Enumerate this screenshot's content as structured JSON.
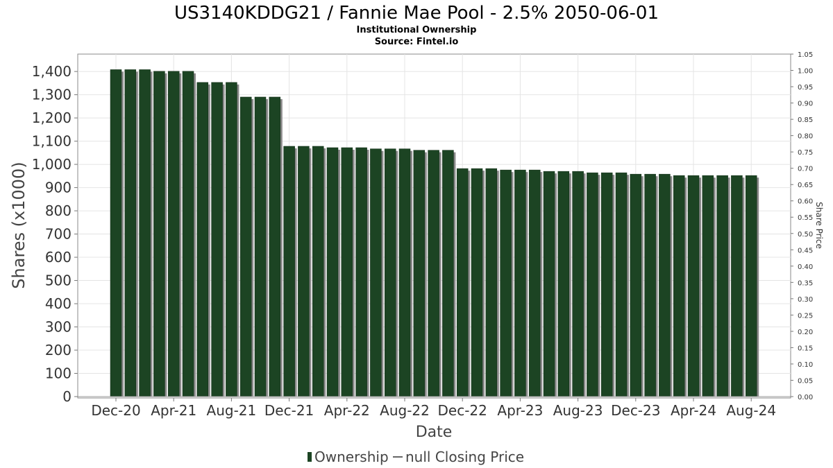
{
  "chart_data": {
    "type": "bar",
    "title": "US3140KDDG21 / Fannie Mae Pool - 2.5% 2050-06-01",
    "subtitle_lines": [
      "Institutional Ownership",
      "Source: Fintel.io"
    ],
    "xlabel": "Date",
    "ylabel": "Shares (x1000)",
    "y2label": "Share Price",
    "ylim": [
      0,
      1475
    ],
    "y2lim": [
      0,
      1.05
    ],
    "yticks": [
      "0",
      "100",
      "200",
      "300",
      "400",
      "500",
      "600",
      "700",
      "800",
      "900",
      "1,000",
      "1,100",
      "1,200",
      "1,300",
      "1,400"
    ],
    "y2ticks": [
      "0.00",
      "0.05",
      "0.10",
      "0.15",
      "0.20",
      "0.25",
      "0.30",
      "0.35",
      "0.40",
      "0.45",
      "0.50",
      "0.55",
      "0.60",
      "0.65",
      "0.70",
      "0.75",
      "0.80",
      "0.85",
      "0.90",
      "0.95",
      "1.00",
      "1.05"
    ],
    "xticks": [
      "Dec-20",
      "Apr-21",
      "Aug-21",
      "Dec-21",
      "Apr-22",
      "Aug-22",
      "Dec-22",
      "Apr-23",
      "Aug-23",
      "Dec-23",
      "Apr-24",
      "Aug-24"
    ],
    "grid": true,
    "legend_position": "bottom-center",
    "series": [
      {
        "name": "Ownership",
        "color": "#1c4423",
        "values": [
          1408,
          1408,
          1408,
          1401,
          1401,
          1401,
          1353,
          1353,
          1353,
          1290,
          1290,
          1290,
          1078,
          1078,
          1078,
          1072,
          1072,
          1072,
          1067,
          1067,
          1067,
          1061,
          1061,
          1061,
          982,
          982,
          982,
          976,
          976,
          976,
          970,
          970,
          970,
          964,
          964,
          964,
          958,
          958,
          958,
          952,
          952,
          952,
          952,
          952,
          952
        ]
      },
      {
        "name": "null Closing Price",
        "color": "#666666",
        "values": []
      }
    ]
  }
}
